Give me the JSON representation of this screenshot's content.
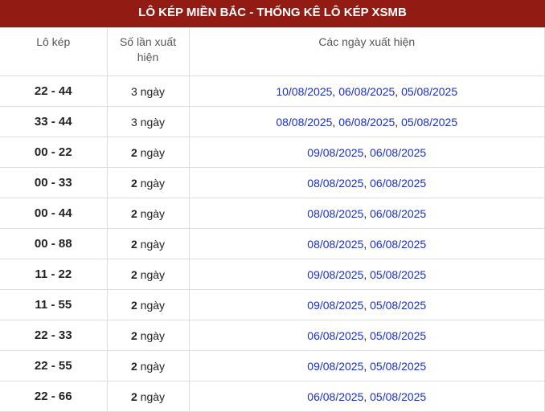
{
  "title": "LÔ KÉP MIỀN BẮC - THỐNG KÊ LÔ KÉP XSMB",
  "headers": [
    "Lô kép",
    "Số lần xuất hiện",
    "Các ngày xuất hiện"
  ],
  "unit": "ngày",
  "colors": {
    "header_bg": "#921c13",
    "date": "#1a2fc4"
  },
  "rows": [
    {
      "pair": "22 - 44",
      "count": "3",
      "dates": [
        "10/08/2025",
        "06/08/2025",
        "05/08/2025"
      ]
    },
    {
      "pair": "33 - 44",
      "count": "3",
      "dates": [
        "08/08/2025",
        "06/08/2025",
        "05/08/2025"
      ]
    },
    {
      "pair": "00 - 22",
      "count": "2",
      "dates": [
        "09/08/2025",
        "06/08/2025"
      ]
    },
    {
      "pair": "00 - 33",
      "count": "2",
      "dates": [
        "08/08/2025",
        "06/08/2025"
      ]
    },
    {
      "pair": "00 - 44",
      "count": "2",
      "dates": [
        "08/08/2025",
        "06/08/2025"
      ]
    },
    {
      "pair": "00 - 88",
      "count": "2",
      "dates": [
        "08/08/2025",
        "06/08/2025"
      ]
    },
    {
      "pair": "11 - 22",
      "count": "2",
      "dates": [
        "09/08/2025",
        "05/08/2025"
      ]
    },
    {
      "pair": "11 - 55",
      "count": "2",
      "dates": [
        "09/08/2025",
        "05/08/2025"
      ]
    },
    {
      "pair": "22 - 33",
      "count": "2",
      "dates": [
        "06/08/2025",
        "05/08/2025"
      ]
    },
    {
      "pair": "22 - 55",
      "count": "2",
      "dates": [
        "09/08/2025",
        "05/08/2025"
      ]
    },
    {
      "pair": "22 - 66",
      "count": "2",
      "dates": [
        "06/08/2025",
        "05/08/2025"
      ]
    }
  ]
}
